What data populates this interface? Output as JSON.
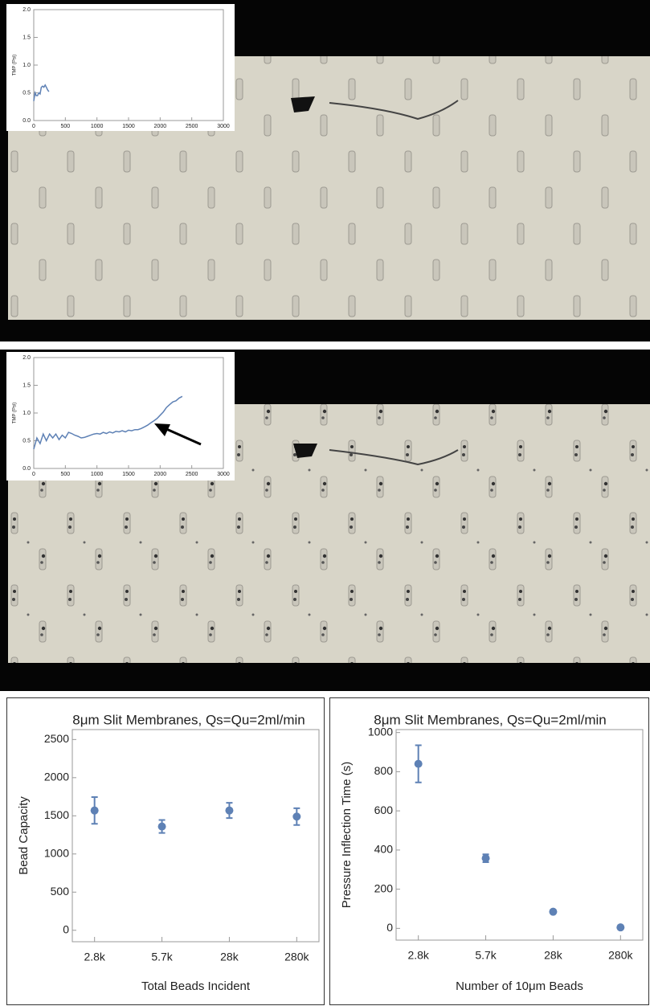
{
  "chart_data": [
    {
      "type": "line",
      "ylabel": "TMP (Psi)",
      "color": "#5e81b5",
      "x": [
        0,
        20,
        40,
        60,
        80,
        100,
        120,
        140,
        160,
        180,
        200,
        220,
        240
      ],
      "values": [
        0.35,
        0.5,
        0.45,
        0.45,
        0.5,
        0.48,
        0.6,
        0.62,
        0.6,
        0.64,
        0.6,
        0.55,
        0.52
      ],
      "xlim": [
        0,
        3000
      ],
      "ylim": [
        0,
        2
      ],
      "xticks": [
        0,
        500,
        1000,
        1500,
        2000,
        2500,
        3000
      ],
      "yticks": [
        {
          "value": 0,
          "label": "0.0"
        },
        {
          "value": 0.5,
          "label": "0.5"
        },
        {
          "value": 1,
          "label": "1.0"
        },
        {
          "value": 1.5,
          "label": "1.5"
        },
        {
          "value": 2,
          "label": "2.0"
        }
      ]
    },
    {
      "type": "line",
      "ylabel": "TMP (Psi)",
      "color": "#5e81b5",
      "x": [
        0,
        50,
        100,
        150,
        200,
        250,
        300,
        350,
        400,
        450,
        500,
        550,
        600,
        650,
        700,
        750,
        800,
        850,
        900,
        950,
        1000,
        1050,
        1100,
        1150,
        1200,
        1250,
        1300,
        1350,
        1400,
        1450,
        1500,
        1550,
        1600,
        1650,
        1700,
        1750,
        1800,
        1850,
        1900,
        1950,
        2000,
        2050,
        2100,
        2150,
        2200,
        2250,
        2300,
        2350
      ],
      "values": [
        0.35,
        0.55,
        0.45,
        0.62,
        0.5,
        0.62,
        0.55,
        0.62,
        0.52,
        0.6,
        0.55,
        0.65,
        0.63,
        0.6,
        0.58,
        0.55,
        0.56,
        0.58,
        0.6,
        0.62,
        0.63,
        0.62,
        0.65,
        0.63,
        0.66,
        0.64,
        0.67,
        0.66,
        0.68,
        0.66,
        0.69,
        0.68,
        0.7,
        0.7,
        0.72,
        0.75,
        0.78,
        0.82,
        0.86,
        0.9,
        0.96,
        1.02,
        1.1,
        1.15,
        1.2,
        1.22,
        1.27,
        1.3
      ],
      "xlim": [
        0,
        3000
      ],
      "ylim": [
        0,
        2
      ],
      "xticks": [
        0,
        500,
        1000,
        1500,
        2000,
        2500,
        3000
      ],
      "yticks": [
        {
          "value": 0,
          "label": "0.0"
        },
        {
          "value": 0.5,
          "label": "0.5"
        },
        {
          "value": 1,
          "label": "1.0"
        },
        {
          "value": 1.5,
          "label": "1.5"
        },
        {
          "value": 2,
          "label": "2.0"
        }
      ]
    },
    {
      "type": "scatter",
      "title": "8μm Slit Membranes, Qs=Qu=2ml/min",
      "xlabel": "Total Beads Incident",
      "ylabel": "Bead Capacity",
      "color": "#5e81b5",
      "categories": [
        "2.8k",
        "5.7k",
        "28k",
        "280k"
      ],
      "values": [
        1570,
        1360,
        1570,
        1490
      ],
      "errors": [
        175,
        85,
        100,
        110
      ],
      "ylim": [
        -150,
        2630
      ],
      "yticks": [
        0,
        500,
        1000,
        1500,
        2000,
        2500
      ]
    },
    {
      "type": "scatter",
      "title": "8μm Slit Membranes, Qs=Qu=2ml/min",
      "xlabel": "Number of 10μm Beads",
      "ylabel": "Pressure Inflection Time (s)",
      "color": "#5e81b5",
      "categories": [
        "2.8k",
        "5.7k",
        "28k",
        "280k"
      ],
      "values": [
        840,
        358,
        85,
        5
      ],
      "errors": [
        95,
        20,
        5,
        3
      ],
      "ylim": [
        -60,
        1015
      ],
      "yticks": [
        0,
        200,
        400,
        600,
        800,
        1000
      ]
    }
  ]
}
